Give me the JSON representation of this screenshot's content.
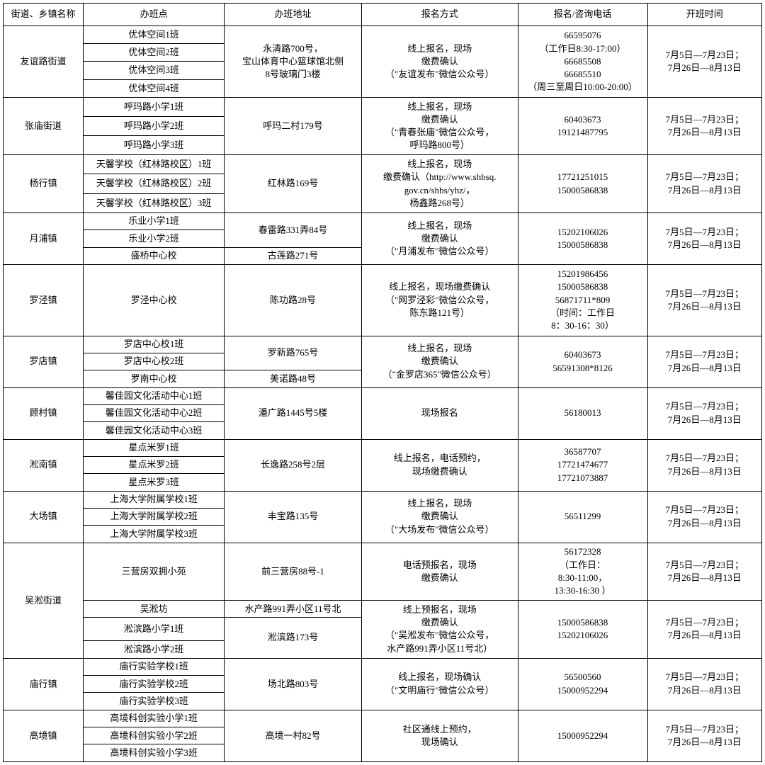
{
  "headers": {
    "area": "街道、乡镇名称",
    "site": "办班点",
    "addr": "办班地址",
    "method": "报名方式",
    "phone": "报名/咨询电话",
    "time": "开班时间"
  },
  "groups": [
    {
      "area": "友谊路街道",
      "sites": [
        "优体空间1班",
        "优体空间2班",
        "优体空间3班",
        "优体空间4班"
      ],
      "addrs": [
        {
          "text": "永清路700号，\n宝山体育中心篮球馆北侧\n8号玻璃门3楼",
          "span": 4
        }
      ],
      "methods": [
        {
          "text": "线上报名，现场\n缴费确认\n（\"友谊发布\"微信公众号）",
          "span": 4
        }
      ],
      "phones": [
        {
          "text": "66595076\n（工作日8:30-17:00）\n66685508\n66685510\n（周三至周日10:00-20:00）",
          "span": 4
        }
      ],
      "times": [
        {
          "text": "7月5日—7月23日；\n7月26日—8月13日",
          "span": 4
        }
      ]
    },
    {
      "area": "张庙街道",
      "sites": [
        "呼玛路小学1班",
        "呼玛路小学2班",
        "呼玛路小学3班"
      ],
      "addrs": [
        {
          "text": "呼玛二村179号",
          "span": 3
        }
      ],
      "methods": [
        {
          "text": "线上报名，现场\n缴费确认\n（\"青春张庙\"微信公众号，\n呼玛路800号）",
          "span": 3
        }
      ],
      "phones": [
        {
          "text": "60403673\n19121487795",
          "span": 3
        }
      ],
      "times": [
        {
          "text": "7月5日—7月23日；\n7月26日—8月13日",
          "span": 3
        }
      ]
    },
    {
      "area": "杨行镇",
      "sites": [
        "天馨学校（红林路校区）1班",
        "天馨学校（红林路校区）2班",
        "天馨学校（红林路校区）3班"
      ],
      "addrs": [
        {
          "text": "红林路169号",
          "span": 3
        }
      ],
      "methods": [
        {
          "text": "线上报名，现场\n缴费确认（http://www.shbsq.\ngov.cn/shbs/yhz/，\n杨鑫路268号）",
          "span": 3
        }
      ],
      "phones": [
        {
          "text": "17721251015\n15000586838",
          "span": 3
        }
      ],
      "times": [
        {
          "text": "7月5日—7月23日；\n7月26日—8月13日",
          "span": 3
        }
      ]
    },
    {
      "area": "月浦镇",
      "sites": [
        "乐业小学1班",
        "乐业小学2班",
        "盛桥中心校"
      ],
      "addrs": [
        {
          "text": "春雷路331弄84号",
          "span": 2
        },
        {
          "text": "古莲路271号",
          "span": 1
        }
      ],
      "methods": [
        {
          "text": "线上报名，现场\n缴费确认\n（\"月浦发布\"微信公众号）",
          "span": 3
        }
      ],
      "phones": [
        {
          "text": "15202106026\n15000586838",
          "span": 3
        }
      ],
      "times": [
        {
          "text": "7月5日—7月23日；\n7月26日—8月13日",
          "span": 3
        }
      ]
    },
    {
      "area": "罗泾镇",
      "sites": [
        "罗泾中心校"
      ],
      "addrs": [
        {
          "text": "陈功路28号",
          "span": 1
        }
      ],
      "methods": [
        {
          "text": "线上报名，现场缴费确认\n（\"网罗泾彩\"微信公众号，\n陈东路121号）",
          "span": 1
        }
      ],
      "phones": [
        {
          "text": "15201986456\n15000586838\n56871711*809\n（时间：工作日\n8：30-16：30）",
          "span": 1
        }
      ],
      "times": [
        {
          "text": "7月5日—7月23日；\n7月26日—8月13日",
          "span": 1
        }
      ]
    },
    {
      "area": "罗店镇",
      "sites": [
        "罗店中心校1班",
        "罗店中心校2班",
        "罗南中心校"
      ],
      "addrs": [
        {
          "text": "罗新路765号",
          "span": 2
        },
        {
          "text": "美诺路48号",
          "span": 1
        }
      ],
      "methods": [
        {
          "text": "线上报名，现场\n缴费确认\n（\"金罗店365\"微信公众号）",
          "span": 3
        }
      ],
      "phones": [
        {
          "text": "60403673\n56591308*8126",
          "span": 3
        }
      ],
      "times": [
        {
          "text": "7月5日—7月23日；\n7月26日—8月13日",
          "span": 3
        }
      ]
    },
    {
      "area": "顾村镇",
      "sites": [
        "馨佳园文化活动中心1班",
        "馨佳园文化活动中心2班",
        "馨佳园文化活动中心3班"
      ],
      "addrs": [
        {
          "text": "潘广路1445号5楼",
          "span": 3
        }
      ],
      "methods": [
        {
          "text": "现场报名",
          "span": 3
        }
      ],
      "phones": [
        {
          "text": "56180013",
          "span": 3
        }
      ],
      "times": [
        {
          "text": "7月5日—7月23日；\n7月26日—8月13日",
          "span": 3
        }
      ]
    },
    {
      "area": "淞南镇",
      "sites": [
        "星点米罗1班",
        "星点米罗2班",
        "星点米罗3班"
      ],
      "addrs": [
        {
          "text": "长逸路258号2层",
          "span": 3
        }
      ],
      "methods": [
        {
          "text": "线上报名，电话预约，\n现场缴费确认",
          "span": 3
        }
      ],
      "phones": [
        {
          "text": "36587707\n17721474677\n17721073887",
          "span": 3
        }
      ],
      "times": [
        {
          "text": "7月5日—7月23日；\n7月26日—8月13日",
          "span": 3
        }
      ]
    },
    {
      "area": "大场镇",
      "sites": [
        "上海大学附属学校1班",
        "上海大学附属学校2班",
        "上海大学附属学校3班"
      ],
      "addrs": [
        {
          "text": "丰宝路135号",
          "span": 3
        }
      ],
      "methods": [
        {
          "text": "线上报名，现场\n缴费确认\n（\"大场发布\"微信公众号）",
          "span": 3
        }
      ],
      "phones": [
        {
          "text": "56511299",
          "span": 3
        }
      ],
      "times": [
        {
          "text": "7月5日—7月23日；\n7月26日—8月13日",
          "span": 3
        }
      ]
    },
    {
      "area": "吴淞街道",
      "sites": [
        "三营房双拥小苑",
        "吴淞坊",
        "淞滨路小学1班",
        "淞滨路小学2班"
      ],
      "addrs": [
        {
          "text": "前三营房88号-1",
          "span": 1
        },
        {
          "text": "水产路991弄小区11号北",
          "span": 1
        },
        {
          "text": "淞滨路173号",
          "span": 2
        }
      ],
      "methods": [
        {
          "text": "电话预报名，现场\n缴费确认",
          "span": 1
        },
        {
          "text": "线上预报名，现场\n缴费确认\n（\"吴淞发布\"微信公众号，\n水产路991弄小区11号北）",
          "span": 3
        }
      ],
      "phones": [
        {
          "text": "56172328\n（工作日：\n8:30-11:00，\n13:30-16:30 ）",
          "span": 1
        },
        {
          "text": "15000586838\n15202106026",
          "span": 3
        }
      ],
      "times": [
        {
          "text": "7月5日—7月23日；\n7月26日—8月13日",
          "span": 1
        },
        {
          "text": "7月5日—7月23日；\n7月26日—8月13日",
          "span": 3
        }
      ]
    },
    {
      "area": "庙行镇",
      "sites": [
        "庙行实验学校1班",
        "庙行实验学校2班",
        "庙行实验学校3班"
      ],
      "addrs": [
        {
          "text": "场北路803号",
          "span": 3
        }
      ],
      "methods": [
        {
          "text": "线上报名，现场确认\n（\"文明庙行\"微信公众号）",
          "span": 3
        }
      ],
      "phones": [
        {
          "text": "56500560\n15000952294",
          "span": 3
        }
      ],
      "times": [
        {
          "text": "7月5日—7月23日；\n7月26日—8月13日",
          "span": 3
        }
      ]
    },
    {
      "area": "高境镇",
      "sites": [
        "高境科创实验小学1班",
        "高境科创实验小学2班",
        "高境科创实验小学3班"
      ],
      "addrs": [
        {
          "text": "高境一村82号",
          "span": 3
        }
      ],
      "methods": [
        {
          "text": "社区通线上预约，\n现场确认",
          "span": 3
        }
      ],
      "phones": [
        {
          "text": "15000952294",
          "span": 3
        }
      ],
      "times": [
        {
          "text": "7月5日—7月23日；\n7月26日—8月13日",
          "span": 3
        }
      ]
    }
  ]
}
